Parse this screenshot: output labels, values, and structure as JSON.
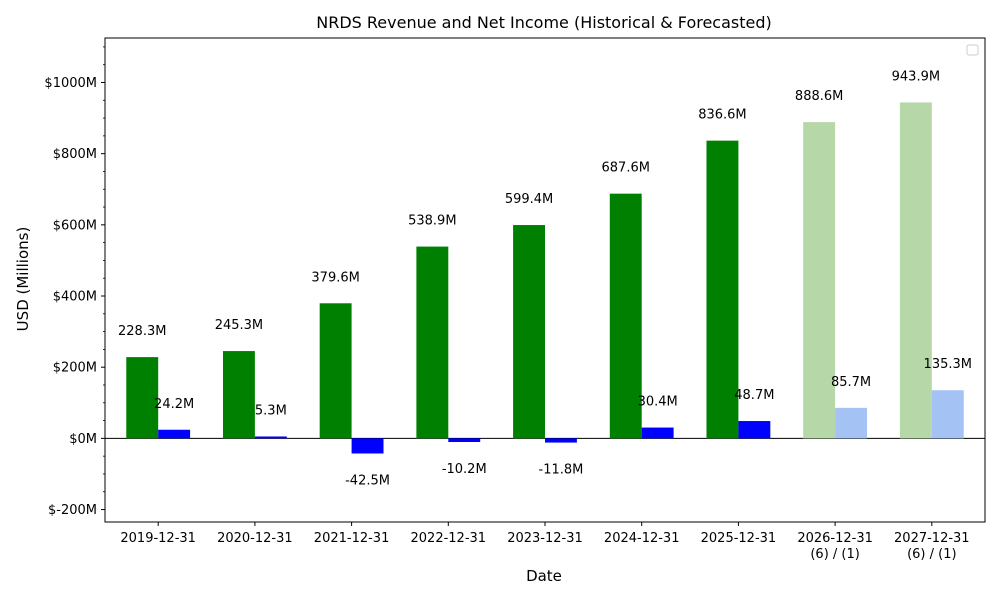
{
  "chart_data": {
    "type": "bar",
    "title": "NRDS Revenue and Net Income (Historical & Forecasted)",
    "xlabel": "Date",
    "ylabel": "USD (Millions)",
    "categories": [
      [
        "2019-12-31"
      ],
      [
        "2020-12-31"
      ],
      [
        "2021-12-31"
      ],
      [
        "2022-12-31"
      ],
      [
        "2023-12-31"
      ],
      [
        "2024-12-31"
      ],
      [
        "2025-12-31"
      ],
      [
        "2026-12-31",
        "(6) / (1)"
      ],
      [
        "2027-12-31",
        "(6) / (1)"
      ]
    ],
    "forecast_flags": [
      false,
      false,
      false,
      false,
      false,
      false,
      false,
      true,
      true
    ],
    "series": [
      {
        "key": "revenue",
        "values": [
          228.3,
          245.3,
          379.6,
          538.9,
          599.4,
          687.6,
          836.6,
          888.6,
          943.9
        ],
        "labels": [
          "228.3M",
          "245.3M",
          "379.6M",
          "538.9M",
          "599.4M",
          "687.6M",
          "836.6M",
          "888.6M",
          "943.9M"
        ],
        "color": "#008000",
        "forecast_color": "#b6d7a8"
      },
      {
        "key": "net_income",
        "values": [
          24.2,
          5.3,
          -42.5,
          -10.2,
          -11.8,
          30.4,
          48.7,
          85.7,
          135.3
        ],
        "labels": [
          "24.2M",
          "5.3M",
          "-42.5M",
          "-10.2M",
          "-11.8M",
          "30.4M",
          "48.7M",
          "85.7M",
          "135.3M"
        ],
        "color": "#0000ff",
        "forecast_color": "#a4c2f4"
      }
    ],
    "ylim": [
      -235,
      1125
    ],
    "yticks": [
      -200,
      0,
      200,
      400,
      600,
      800,
      1000
    ],
    "ytick_labels": [
      "$-200M",
      "$0M",
      "$200M",
      "$400M",
      "$600M",
      "$800M",
      "$1000M"
    ],
    "minor_tick_step": 50,
    "zero_line": true,
    "grid": false,
    "legend": {
      "placement": "top-right",
      "entries": []
    }
  }
}
